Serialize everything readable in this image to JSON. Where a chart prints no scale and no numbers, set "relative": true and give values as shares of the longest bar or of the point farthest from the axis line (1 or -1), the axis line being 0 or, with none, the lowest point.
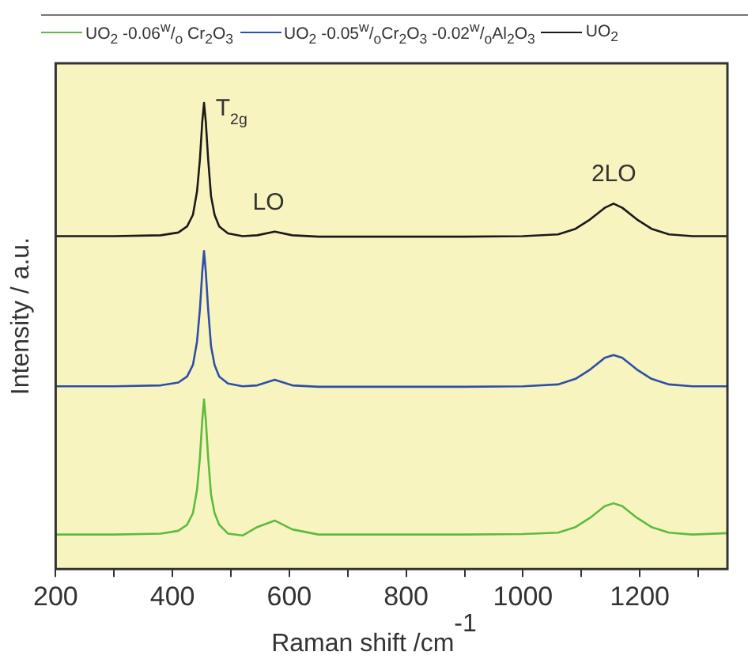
{
  "chart_data": {
    "type": "line",
    "xlabel": "Raman shift /cm$^{-1}$",
    "ylabel": "Intensity / a.u.",
    "relative": true,
    "legend": "top",
    "marker": "none",
    "line_style": "solid",
    "grid": false,
    "x": [
      200,
      300,
      380,
      410,
      425,
      435,
      442,
      447,
      451,
      454,
      457,
      461,
      466,
      472,
      480,
      495,
      520,
      545,
      575,
      605,
      650,
      800,
      900,
      1000,
      1060,
      1090,
      1115,
      1140,
      1155,
      1170,
      1195,
      1220,
      1250,
      1290,
      1350
    ],
    "xlim": [
      200,
      1350
    ],
    "xticks": [
      200,
      {
        "value": 300,
        "label": null
      },
      400,
      {
        "value": 500,
        "label": null
      },
      600,
      {
        "value": 700,
        "label": null
      },
      800,
      {
        "value": 900,
        "label": null
      },
      1000,
      {
        "value": 1100,
        "label": null
      },
      1200,
      {
        "value": 1300,
        "label": null
      }
    ],
    "series": [
      {
        "name": "UO$_{2}$ -0.06$^{w}$/$_{o}$ Cr$_{2}$O$_{3}$",
        "color": "#5dbb3f",
        "values": [
          0.074,
          0.074,
          0.076,
          0.082,
          0.095,
          0.12,
          0.17,
          0.24,
          0.32,
          0.364,
          0.32,
          0.24,
          0.16,
          0.12,
          0.095,
          0.076,
          0.072,
          0.09,
          0.104,
          0.085,
          0.074,
          0.074,
          0.074,
          0.075,
          0.078,
          0.09,
          0.11,
          0.135,
          0.141,
          0.135,
          0.11,
          0.09,
          0.078,
          0.074,
          0.077
        ]
      },
      {
        "name": "UO$_{2}$ -0.05$^{w}$/$_{o}$Cr$_{2}$O$_{3}$ -0.02$^{w}$/$_{o}$Al$_{2}$O$_{3}$",
        "color": "#2e4fa8",
        "values": [
          0.392,
          0.392,
          0.394,
          0.4,
          0.413,
          0.438,
          0.488,
          0.558,
          0.638,
          0.682,
          0.638,
          0.558,
          0.478,
          0.438,
          0.413,
          0.398,
          0.392,
          0.394,
          0.406,
          0.394,
          0.391,
          0.391,
          0.391,
          0.392,
          0.396,
          0.408,
          0.428,
          0.453,
          0.459,
          0.453,
          0.428,
          0.408,
          0.396,
          0.392,
          0.392
        ]
      },
      {
        "name": "UO$_{2}$",
        "color": "#1a1a1a",
        "values": [
          0.714,
          0.714,
          0.716,
          0.722,
          0.735,
          0.76,
          0.81,
          0.88,
          0.96,
          1.0,
          0.96,
          0.88,
          0.8,
          0.76,
          0.735,
          0.72,
          0.714,
          0.716,
          0.724,
          0.716,
          0.713,
          0.713,
          0.713,
          0.714,
          0.718,
          0.73,
          0.75,
          0.775,
          0.784,
          0.775,
          0.75,
          0.73,
          0.718,
          0.714,
          0.714
        ]
      }
    ],
    "annotations": [
      {
        "text": "T$_{2g}$",
        "x": 455,
        "y": 1.0
      },
      {
        "text": "LO",
        "x": 575,
        "y": 0.724
      },
      {
        "text": "2LO",
        "x": 1155,
        "y": 0.784
      }
    ]
  }
}
